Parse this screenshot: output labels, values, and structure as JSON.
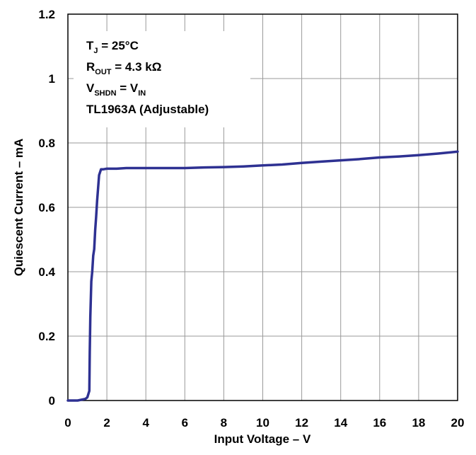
{
  "chart_data": {
    "type": "line",
    "xlabel": "Input Voltage – V",
    "ylabel": "Quiescent Current – mA",
    "xlim": [
      0,
      20
    ],
    "ylim": [
      0,
      1.2
    ],
    "xticks": [
      0,
      2,
      4,
      6,
      8,
      10,
      12,
      14,
      16,
      18,
      20
    ],
    "yticks": [
      0,
      0.2,
      0.4,
      0.6,
      0.8,
      1.0,
      1.2
    ],
    "xtick_labels": [
      "0",
      "2",
      "4",
      "6",
      "8",
      "10",
      "12",
      "14",
      "16",
      "18",
      "20"
    ],
    "ytick_labels": [
      "0",
      "0.2",
      "0.4",
      "0.6",
      "0.8",
      "1",
      "1.2"
    ],
    "grid": true,
    "line_color": "#2e3192",
    "annotations": [
      {
        "main": "T",
        "sub": "J",
        "rest": " = 25°C"
      },
      {
        "main": "R",
        "sub": "OUT",
        "rest": " = 4.3 kΩ"
      },
      {
        "main": "V",
        "sub": "SHDN",
        "rest": " = V",
        "sub2": "IN"
      },
      {
        "main": "TL1963A (Adjustable)"
      }
    ],
    "series": [
      {
        "x": [
          0.0,
          0.5,
          0.9,
          1.0,
          1.1,
          1.12,
          1.15,
          1.2,
          1.25,
          1.3,
          1.35,
          1.4,
          1.45,
          1.5,
          1.55,
          1.6,
          1.7,
          1.8,
          2.0,
          2.5,
          3.0,
          4.0,
          5.0,
          6.0,
          7.0,
          8.0,
          9.0,
          10.0,
          11.0,
          12.0,
          13.0,
          14.0,
          15.0,
          16.0,
          17.0,
          18.0,
          19.0,
          20.0
        ],
        "y": [
          0.0,
          0.0,
          0.005,
          0.01,
          0.03,
          0.15,
          0.26,
          0.37,
          0.4,
          0.45,
          0.47,
          0.53,
          0.57,
          0.62,
          0.66,
          0.7,
          0.718,
          0.718,
          0.72,
          0.72,
          0.722,
          0.722,
          0.722,
          0.722,
          0.724,
          0.725,
          0.727,
          0.73,
          0.733,
          0.738,
          0.742,
          0.746,
          0.75,
          0.755,
          0.758,
          0.762,
          0.767,
          0.773
        ]
      }
    ]
  }
}
